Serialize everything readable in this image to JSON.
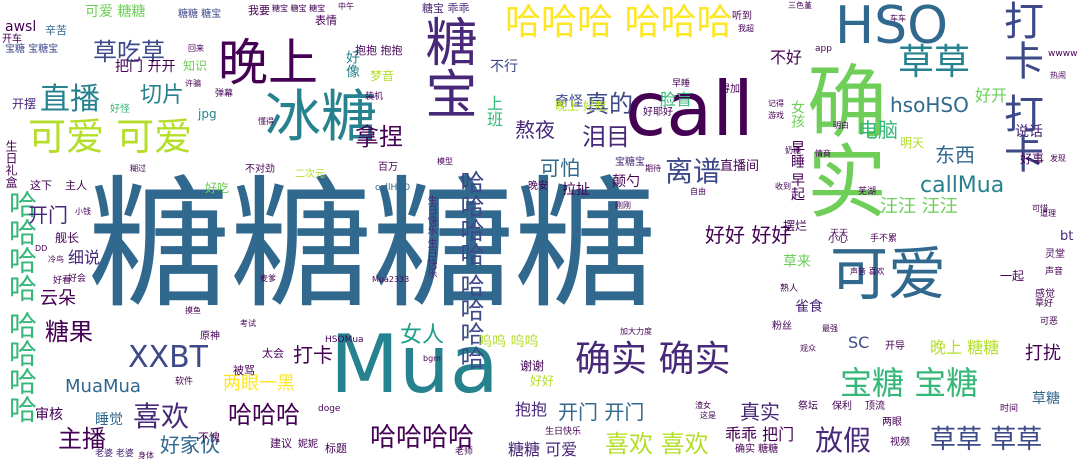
{
  "palette": {
    "dark_purple": "#440154",
    "indigo": "#482878",
    "blue_violet": "#3e4989",
    "steel_blue": "#31688e",
    "teal_blue": "#26828e",
    "teal": "#1f9e89",
    "green": "#35b779",
    "light_green": "#6ece58",
    "lime": "#b5de2b",
    "yellow": "#fde725"
  },
  "words": [
    {
      "text": "糖糖糖糖",
      "size": 142,
      "color": "#31688e",
      "vertical": false
    },
    {
      "text": "Mua",
      "size": 80,
      "color": "#26828e",
      "vertical": false
    },
    {
      "text": "call",
      "size": 75,
      "color": "#440154",
      "vertical": false
    },
    {
      "text": "确实",
      "size": 80,
      "color": "#6ece58",
      "vertical": true
    },
    {
      "text": "可爱",
      "size": 58,
      "color": "#31688e",
      "vertical": false
    },
    {
      "text": "冰糖",
      "size": 56,
      "color": "#26828e",
      "vertical": false
    },
    {
      "text": "糖宝",
      "size": 52,
      "color": "#482878",
      "vertical": true
    },
    {
      "text": "晚上",
      "size": 50,
      "color": "#440154",
      "vertical": false
    },
    {
      "text": "HSO",
      "size": 52,
      "color": "#31688e",
      "vertical": false
    },
    {
      "text": "打卡 打卡",
      "size": 40,
      "color": "#3e4989",
      "vertical": true
    },
    {
      "text": "哈哈哈 哈哈哈",
      "size": 36,
      "color": "#fde725",
      "vertical": false
    },
    {
      "text": "可爱 可爱",
      "size": 38,
      "color": "#b5de2b",
      "vertical": false
    },
    {
      "text": "草草",
      "size": 36,
      "color": "#26828e",
      "vertical": false
    },
    {
      "text": "确实 确实",
      "size": 36,
      "color": "#482878",
      "vertical": false
    },
    {
      "text": "宝糖 宝糖",
      "size": 32,
      "color": "#35b779",
      "vertical": false
    },
    {
      "text": "哈哈哈哈 哈哈哈哈",
      "size": 28,
      "color": "#35b779",
      "vertical": true
    },
    {
      "text": "哈哈哈哈 哈哈哈哈",
      "size": 24,
      "color": "#3e4989",
      "vertical": true
    },
    {
      "text": "XXBT",
      "size": 30,
      "color": "#3e4989",
      "vertical": false
    },
    {
      "text": "直播",
      "size": 30,
      "color": "#26828e",
      "vertical": false
    },
    {
      "text": "草草 草草",
      "size": 26,
      "color": "#3e4989",
      "vertical": false
    },
    {
      "text": "放假",
      "size": 28,
      "color": "#482878",
      "vertical": false
    },
    {
      "text": "离谱",
      "size": 28,
      "color": "#3e4989",
      "vertical": false
    },
    {
      "text": "喜欢",
      "size": 28,
      "color": "#482878",
      "vertical": false
    },
    {
      "text": "喜欢 喜欢",
      "size": 24,
      "color": "#b5de2b",
      "vertical": false
    },
    {
      "text": "哈哈哈哈",
      "size": 26,
      "color": "#440154",
      "vertical": false
    },
    {
      "text": "哈哈哈",
      "size": 24,
      "color": "#440154",
      "vertical": false
    },
    {
      "text": "草吃草",
      "size": 24,
      "color": "#3e4989",
      "vertical": false
    },
    {
      "text": "切片",
      "size": 22,
      "color": "#26828e",
      "vertical": false
    },
    {
      "text": "拿捏",
      "size": 24,
      "color": "#440154",
      "vertical": false
    },
    {
      "text": "真的",
      "size": 24,
      "color": "#3e4989",
      "vertical": false
    },
    {
      "text": "泪目",
      "size": 24,
      "color": "#482878",
      "vertical": false
    },
    {
      "text": "糖果",
      "size": 24,
      "color": "#440154",
      "vertical": false
    },
    {
      "text": "主播",
      "size": 24,
      "color": "#440154",
      "vertical": false
    },
    {
      "text": "女人",
      "size": 22,
      "color": "#1f9e89",
      "vertical": false
    },
    {
      "text": "callMua",
      "size": 22,
      "color": "#26828e",
      "vertical": false
    },
    {
      "text": "hsoHSO",
      "size": 20,
      "color": "#31688e",
      "vertical": false
    },
    {
      "text": "好好 好好",
      "size": 20,
      "color": "#440154",
      "vertical": false
    },
    {
      "text": "电脑",
      "size": 20,
      "color": "#35b779",
      "vertical": false
    },
    {
      "text": "东西",
      "size": 20,
      "color": "#31688e",
      "vertical": false
    },
    {
      "text": "开门 开门",
      "size": 20,
      "color": "#31688e",
      "vertical": false
    },
    {
      "text": "真实",
      "size": 20,
      "color": "#482878",
      "vertical": false
    },
    {
      "text": "可怕",
      "size": 20,
      "color": "#31688e",
      "vertical": false
    },
    {
      "text": "熬夜",
      "size": 20,
      "color": "#482878",
      "vertical": false
    },
    {
      "text": "好家伙",
      "size": 20,
      "color": "#31688e",
      "vertical": false
    },
    {
      "text": "两眼一黑",
      "size": 18,
      "color": "#fde725",
      "vertical": false
    },
    {
      "text": "MuaMua",
      "size": 18,
      "color": "#31688e",
      "vertical": false
    },
    {
      "text": "打卡",
      "size": 20,
      "color": "#440154",
      "vertical": false
    },
    {
      "text": "开门",
      "size": 20,
      "color": "#482878",
      "vertical": false
    },
    {
      "text": "云朵",
      "size": 18,
      "color": "#440154",
      "vertical": false
    },
    {
      "text": "打扰",
      "size": 18,
      "color": "#440154",
      "vertical": false
    },
    {
      "text": "晚上 糖糖",
      "size": 16,
      "color": "#b5de2b",
      "vertical": false
    },
    {
      "text": "SC",
      "size": 16,
      "color": "#3e4989",
      "vertical": false
    },
    {
      "text": "抱抱",
      "size": 16,
      "color": "#482878",
      "vertical": false
    },
    {
      "text": "乖乖 把门",
      "size": 16,
      "color": "#440154",
      "vertical": false
    },
    {
      "text": "糖糖 可爱",
      "size": 16,
      "color": "#482878",
      "vertical": false
    },
    {
      "text": "汪汪 汪汪",
      "size": 18,
      "color": "#6ece58",
      "vertical": false
    },
    {
      "text": "呜呜 呜呜",
      "size": 14,
      "color": "#b5de2b",
      "vertical": false
    },
    {
      "text": "上班",
      "size": 16,
      "color": "#35b779",
      "vertical": true
    },
    {
      "text": "不好",
      "size": 16,
      "color": "#440154",
      "vertical": false
    },
    {
      "text": "好开",
      "size": 16,
      "color": "#6ece58",
      "vertical": false
    },
    {
      "text": "脸盲",
      "size": 16,
      "color": "#35b779",
      "vertical": false
    },
    {
      "text": "奇怪",
      "size": 14,
      "color": "#3e4989",
      "vertical": false
    },
    {
      "text": "细说",
      "size": 16,
      "color": "#482878",
      "vertical": false
    },
    {
      "text": "舰长",
      "size": 12,
      "color": "#440154",
      "vertical": false
    },
    {
      "text": "审核",
      "size": 14,
      "color": "#440154",
      "vertical": false
    },
    {
      "text": "睡觉",
      "size": 14,
      "color": "#31688e",
      "vertical": false
    },
    {
      "text": "说话",
      "size": 14,
      "color": "#482878",
      "vertical": false
    },
    {
      "text": "把门 开开",
      "size": 14,
      "color": "#440154",
      "vertical": false
    },
    {
      "text": "知识",
      "size": 12,
      "color": "#6ece58",
      "vertical": false
    },
    {
      "text": "不行",
      "size": 14,
      "color": "#3e4989",
      "vertical": false
    },
    {
      "text": "拉扯",
      "size": 14,
      "color": "#440154",
      "vertical": false
    },
    {
      "text": "颠勺",
      "size": 14,
      "color": "#440154",
      "vertical": false
    },
    {
      "text": "雀食",
      "size": 14,
      "color": "#482878",
      "vertical": false
    },
    {
      "text": "草来",
      "size": 14,
      "color": "#6ece58",
      "vertical": false
    },
    {
      "text": "草糖",
      "size": 14,
      "color": "#31688e",
      "vertical": false
    },
    {
      "text": "直播间",
      "size": 13,
      "color": "#440154",
      "vertical": false
    },
    {
      "text": "摆烂",
      "size": 12,
      "color": "#440154",
      "vertical": false
    },
    {
      "text": "bt",
      "size": 13,
      "color": "#482878",
      "vertical": false
    },
    {
      "text": "好事",
      "size": 12,
      "color": "#440154",
      "vertical": false
    },
    {
      "text": "明天",
      "size": 12,
      "color": "#b5de2b",
      "vertical": false
    },
    {
      "text": "早睡 早起",
      "size": 14,
      "color": "#440154",
      "vertical": true
    },
    {
      "text": "女孩",
      "size": 14,
      "color": "#6ece58",
      "vertical": true
    },
    {
      "text": "好像",
      "size": 14,
      "color": "#26828e",
      "vertical": true
    },
    {
      "text": "梦音",
      "size": 12,
      "color": "#b5de2b",
      "vertical": false
    },
    {
      "text": "晚上 好吃",
      "size": 12,
      "color": "#b5de2b",
      "vertical": false
    },
    {
      "text": "好吃",
      "size": 12,
      "color": "#6ece58",
      "vertical": false
    },
    {
      "text": "awsl",
      "size": 14,
      "color": "#440154",
      "vertical": false
    },
    {
      "text": "可爱 糖糖",
      "size": 14,
      "color": "#6ece58",
      "vertical": false
    },
    {
      "text": "辛苦",
      "size": 11,
      "color": "#31688e",
      "vertical": false
    },
    {
      "text": "开摆",
      "size": 12,
      "color": "#482878",
      "vertical": false
    },
    {
      "text": "开车",
      "size": 10,
      "color": "#440154",
      "vertical": false
    },
    {
      "text": "我要",
      "size": 11,
      "color": "#440154",
      "vertical": false
    },
    {
      "text": "表情",
      "size": 11,
      "color": "#440154",
      "vertical": false
    },
    {
      "text": "糖宝 乖乖",
      "size": 11,
      "color": "#482878",
      "vertical": false
    },
    {
      "text": "听到",
      "size": 10,
      "color": "#440154",
      "vertical": false
    },
    {
      "text": "糖糖 糖宝",
      "size": 10,
      "color": "#3e4989",
      "vertical": false
    },
    {
      "text": "宝糖 宝糖宝",
      "size": 10,
      "color": "#3e4989",
      "vertical": false
    },
    {
      "text": "抱抱 抱抱",
      "size": 11,
      "color": "#440154",
      "vertical": false
    },
    {
      "text": "生日礼盒",
      "size": 12,
      "color": "#440154",
      "vertical": true
    },
    {
      "text": "生日快乐 生日快乐",
      "size": 10,
      "color": "#482878",
      "vertical": true
    },
    {
      "text": "这下",
      "size": 11,
      "color": "#440154",
      "vertical": false
    },
    {
      "text": "主人",
      "size": 11,
      "color": "#440154",
      "vertical": false
    },
    {
      "text": "不对劲",
      "size": 10,
      "color": "#440154",
      "vertical": false
    },
    {
      "text": "二次元",
      "size": 10,
      "color": "#b5de2b",
      "vertical": false
    },
    {
      "text": "百万",
      "size": 10,
      "color": "#440154",
      "vertical": false
    },
    {
      "text": "晚安",
      "size": 10,
      "color": "#440154",
      "vertical": false
    },
    {
      "text": "宝糖宝",
      "size": 10,
      "color": "#482878",
      "vertical": false
    },
    {
      "text": "callHSO",
      "size": 9,
      "color": "#31688e",
      "vertical": false
    },
    {
      "text": "jpg",
      "size": 12,
      "color": "#26828e",
      "vertical": false
    },
    {
      "text": "好怪",
      "size": 10,
      "color": "#35b779",
      "vertical": false
    },
    {
      "text": "原神",
      "size": 10,
      "color": "#440154",
      "vertical": false
    },
    {
      "text": "被骂",
      "size": 11,
      "color": "#440154",
      "vertical": false
    },
    {
      "text": "太会",
      "size": 11,
      "color": "#440154",
      "vertical": false
    },
    {
      "text": "谢谢",
      "size": 12,
      "color": "#440154",
      "vertical": false
    },
    {
      "text": "好好",
      "size": 12,
      "color": "#b5de2b",
      "vertical": false
    },
    {
      "text": "HSOMua",
      "size": 9,
      "color": "#440154",
      "vertical": false
    },
    {
      "text": "软件",
      "size": 9,
      "color": "#440154",
      "vertical": false
    },
    {
      "text": "doge",
      "size": 9,
      "color": "#440154",
      "vertical": false
    },
    {
      "text": "建议",
      "size": 11,
      "color": "#440154",
      "vertical": false
    },
    {
      "text": "不愧",
      "size": 11,
      "color": "#440154",
      "vertical": false
    },
    {
      "text": "妮妮",
      "size": 10,
      "color": "#440154",
      "vertical": false
    },
    {
      "text": "标题",
      "size": 11,
      "color": "#440154",
      "vertical": false
    },
    {
      "text": "老师",
      "size": 9,
      "color": "#440154",
      "vertical": false
    },
    {
      "text": "老婆 老婆",
      "size": 9,
      "color": "#482878",
      "vertical": false
    },
    {
      "text": "身体",
      "size": 8,
      "color": "#440154",
      "vertical": false
    },
    {
      "text": "确实 糖糖",
      "size": 10,
      "color": "#440154",
      "vertical": false
    },
    {
      "text": "视频",
      "size": 10,
      "color": "#440154",
      "vertical": false
    },
    {
      "text": "时间",
      "size": 9,
      "color": "#440154",
      "vertical": false
    },
    {
      "text": "小心",
      "size": 10,
      "color": "#440154",
      "vertical": false
    },
    {
      "text": "天天",
      "size": 9,
      "color": "#440154",
      "vertical": false
    },
    {
      "text": "手不累",
      "size": 9,
      "color": "#440154",
      "vertical": false
    },
    {
      "text": "灵堂",
      "size": 10,
      "color": "#440154",
      "vertical": false
    },
    {
      "text": "声音",
      "size": 9,
      "color": "#440154",
      "vertical": false
    },
    {
      "text": "草好",
      "size": 9,
      "color": "#440154",
      "vertical": false
    },
    {
      "text": "可恶",
      "size": 9,
      "color": "#440154",
      "vertical": false
    },
    {
      "text": "熟人",
      "size": 9,
      "color": "#440154",
      "vertical": false
    },
    {
      "text": "开导",
      "size": 10,
      "color": "#440154",
      "vertical": false
    },
    {
      "text": "顶流",
      "size": 10,
      "color": "#440154",
      "vertical": false
    },
    {
      "text": "保利",
      "size": 10,
      "color": "#440154",
      "vertical": false
    },
    {
      "text": "祭坛",
      "size": 10,
      "color": "#440154",
      "vertical": false
    },
    {
      "text": "两眼",
      "size": 10,
      "color": "#440154",
      "vertical": false
    },
    {
      "text": "渣女",
      "size": 8,
      "color": "#440154",
      "vertical": false
    },
    {
      "text": "这是",
      "size": 8,
      "color": "#440154",
      "vertical": false
    },
    {
      "text": "模型",
      "size": 8,
      "color": "#440154",
      "vertical": false
    },
    {
      "text": "得加",
      "size": 10,
      "color": "#440154",
      "vertical": false
    },
    {
      "text": "装机",
      "size": 9,
      "color": "#440154",
      "vertical": false
    },
    {
      "text": "回来",
      "size": 8,
      "color": "#440154",
      "vertical": false
    },
    {
      "text": "许骗",
      "size": 8,
      "color": "#440154",
      "vertical": false
    },
    {
      "text": "弹幕",
      "size": 9,
      "color": "#440154",
      "vertical": false
    },
    {
      "text": "懂得",
      "size": 8,
      "color": "#440154",
      "vertical": false
    },
    {
      "text": "早睡",
      "size": 9,
      "color": "#440154",
      "vertical": false
    },
    {
      "text": "好耶好",
      "size": 10,
      "color": "#440154",
      "vertical": false
    },
    {
      "text": "记得",
      "size": 8,
      "color": "#440154",
      "vertical": false
    },
    {
      "text": "游戏",
      "size": 8,
      "color": "#440154",
      "vertical": false
    },
    {
      "text": "奶糖",
      "size": 8,
      "color": "#440154",
      "vertical": false
    },
    {
      "text": "明白",
      "size": 8,
      "color": "#440154",
      "vertical": false
    },
    {
      "text": "情商",
      "size": 8,
      "color": "#440154",
      "vertical": false
    },
    {
      "text": "芜湖",
      "size": 9,
      "color": "#440154",
      "vertical": false
    },
    {
      "text": "收到",
      "size": 8,
      "color": "#440154",
      "vertical": false
    },
    {
      "text": "自由",
      "size": 8,
      "color": "#440154",
      "vertical": false
    },
    {
      "text": "期待",
      "size": 8,
      "color": "#440154",
      "vertical": false
    },
    {
      "text": "发现",
      "size": 8,
      "color": "#440154",
      "vertical": false
    },
    {
      "text": "道理",
      "size": 8,
      "color": "#440154",
      "vertical": false
    },
    {
      "text": "可惜",
      "size": 8,
      "color": "#440154",
      "vertical": false
    },
    {
      "text": "刚刚",
      "size": 8,
      "color": "#440154",
      "vertical": false
    },
    {
      "text": "车车",
      "size": 8,
      "color": "#440154",
      "vertical": false
    },
    {
      "text": "三色堇",
      "size": 8,
      "color": "#440154",
      "vertical": false
    },
    {
      "text": "我超",
      "size": 8,
      "color": "#440154",
      "vertical": false
    },
    {
      "text": "app",
      "size": 9,
      "color": "#440154",
      "vertical": false
    },
    {
      "text": "wwww",
      "size": 9,
      "color": "#440154",
      "vertical": false
    },
    {
      "text": "加大力度",
      "size": 8,
      "color": "#440154",
      "vertical": false
    },
    {
      "text": "Mua2333",
      "size": 8,
      "color": "#440154",
      "vertical": false
    },
    {
      "text": "bgm",
      "size": 8,
      "color": "#440154",
      "vertical": false
    },
    {
      "text": "考试",
      "size": 8,
      "color": "#440154",
      "vertical": false
    },
    {
      "text": "摸鱼",
      "size": 8,
      "color": "#440154",
      "vertical": false
    },
    {
      "text": "冷鸟",
      "size": 8,
      "color": "#440154",
      "vertical": false
    },
    {
      "text": "DD",
      "size": 8,
      "color": "#440154",
      "vertical": false
    },
    {
      "text": "小钱",
      "size": 8,
      "color": "#440154",
      "vertical": false
    },
    {
      "text": "好看",
      "size": 9,
      "color": "#440154",
      "vertical": false
    },
    {
      "text": "粉丝",
      "size": 10,
      "color": "#440154",
      "vertical": false
    },
    {
      "text": "观众",
      "size": 8,
      "color": "#440154",
      "vertical": false
    },
    {
      "text": "最强",
      "size": 8,
      "color": "#440154",
      "vertical": false
    },
    {
      "text": "麦爹",
      "size": 8,
      "color": "#440154",
      "vertical": false
    },
    {
      "text": "中午",
      "size": 8,
      "color": "#440154",
      "vertical": false
    },
    {
      "text": "糖宝 糖宝 糖宝",
      "size": 8,
      "color": "#440154",
      "vertical": false
    },
    {
      "text": "糊过",
      "size": 8,
      "color": "#440154",
      "vertical": false
    },
    {
      "text": "一起",
      "size": 12,
      "color": "#440154",
      "vertical": false
    },
    {
      "text": "生日快乐",
      "size": 9,
      "color": "#440154",
      "vertical": false
    },
    {
      "text": "声音 喜欢",
      "size": 8,
      "color": "#440154",
      "vertical": false
    },
    {
      "text": "好会",
      "size": 9,
      "color": "#440154",
      "vertical": false
    },
    {
      "text": "热闹",
      "size": 8,
      "color": "#440154",
      "vertical": false
    },
    {
      "text": "感觉",
      "size": 10,
      "color": "#440154",
      "vertical": false
    }
  ]
}
